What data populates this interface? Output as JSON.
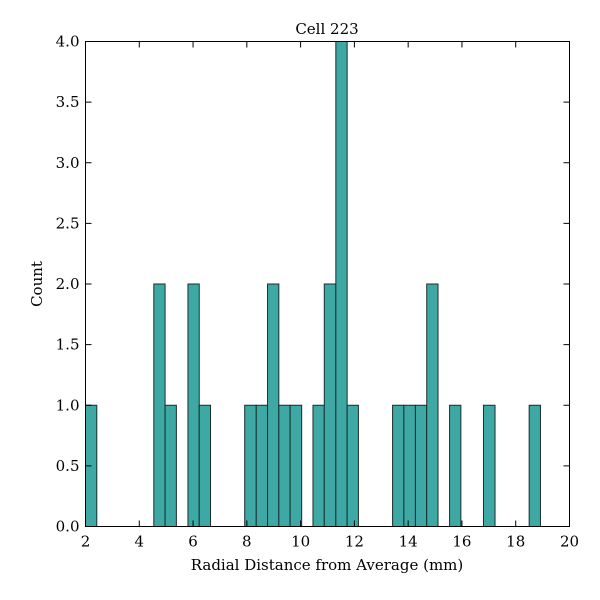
{
  "chart_data": {
    "type": "bar",
    "title": "Cell 223",
    "xlabel": "Radial Distance from Average (mm)",
    "ylabel": "Count",
    "xlim": [
      2,
      20
    ],
    "ylim": [
      0,
      4.0
    ],
    "xticks": [
      2,
      4,
      6,
      8,
      10,
      12,
      14,
      16,
      18,
      20
    ],
    "xtick_labels": [
      "2",
      "4",
      "6",
      "8",
      "10",
      "12",
      "14",
      "16",
      "18",
      "20"
    ],
    "yticks": [
      0,
      0.5,
      1.0,
      1.5,
      2.0,
      2.5,
      3.0,
      3.5,
      4.0
    ],
    "ytick_labels": [
      "0.0",
      "0.5",
      "1.0",
      "1.5",
      "2.0",
      "2.5",
      "3.0",
      "3.5",
      "4.0"
    ],
    "grid": false,
    "bar_color": "#3da8a4",
    "bars": [
      {
        "x0": 2.0,
        "x1": 2.42,
        "count": 1
      },
      {
        "x0": 4.54,
        "x1": 4.96,
        "count": 2
      },
      {
        "x0": 4.96,
        "x1": 5.38,
        "count": 1
      },
      {
        "x0": 5.81,
        "x1": 6.23,
        "count": 2
      },
      {
        "x0": 6.23,
        "x1": 6.65,
        "count": 1
      },
      {
        "x0": 7.92,
        "x1": 8.35,
        "count": 1
      },
      {
        "x0": 8.35,
        "x1": 8.77,
        "count": 1
      },
      {
        "x0": 8.77,
        "x1": 9.19,
        "count": 2
      },
      {
        "x0": 9.19,
        "x1": 9.61,
        "count": 1
      },
      {
        "x0": 9.61,
        "x1": 10.04,
        "count": 1
      },
      {
        "x0": 10.46,
        "x1": 10.88,
        "count": 1
      },
      {
        "x0": 10.88,
        "x1": 11.31,
        "count": 2
      },
      {
        "x0": 11.31,
        "x1": 11.73,
        "count": 4
      },
      {
        "x0": 11.73,
        "x1": 12.15,
        "count": 1
      },
      {
        "x0": 13.42,
        "x1": 13.84,
        "count": 1
      },
      {
        "x0": 13.84,
        "x1": 14.27,
        "count": 1
      },
      {
        "x0": 14.27,
        "x1": 14.69,
        "count": 1
      },
      {
        "x0": 14.69,
        "x1": 15.11,
        "count": 2
      },
      {
        "x0": 15.54,
        "x1": 15.96,
        "count": 1
      },
      {
        "x0": 16.8,
        "x1": 17.23,
        "count": 1
      },
      {
        "x0": 18.5,
        "x1": 18.92,
        "count": 1
      }
    ]
  }
}
